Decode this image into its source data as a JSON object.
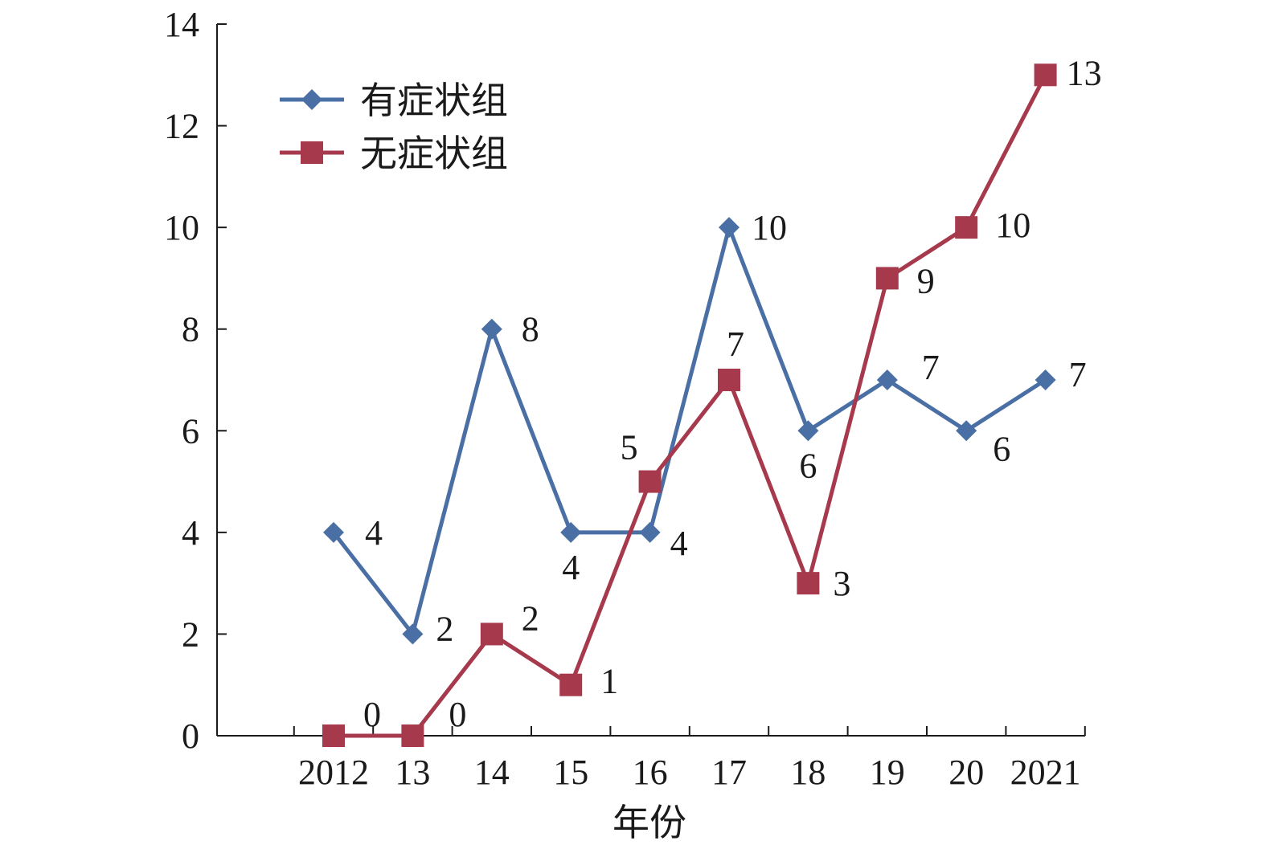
{
  "chart_data": {
    "type": "line",
    "categories": [
      "2012",
      "13",
      "14",
      "15",
      "16",
      "17",
      "18",
      "19",
      "20",
      "2021"
    ],
    "series": [
      {
        "name": "有症状组",
        "values": [
          4,
          2,
          8,
          4,
          4,
          10,
          6,
          7,
          6,
          7
        ],
        "color": "#4a6fa5",
        "marker": "diamond"
      },
      {
        "name": "无症状组",
        "values": [
          0,
          0,
          2,
          1,
          5,
          7,
          3,
          9,
          10,
          13
        ],
        "color": "#a63a4c",
        "marker": "square"
      }
    ],
    "xlabel": "年份",
    "ylabel": "",
    "ylim": [
      0,
      14
    ],
    "yticks": [
      "0",
      "2",
      "4",
      "6",
      "8",
      "10",
      "12",
      "14"
    ],
    "grid": false,
    "legend_position": "top-left"
  }
}
